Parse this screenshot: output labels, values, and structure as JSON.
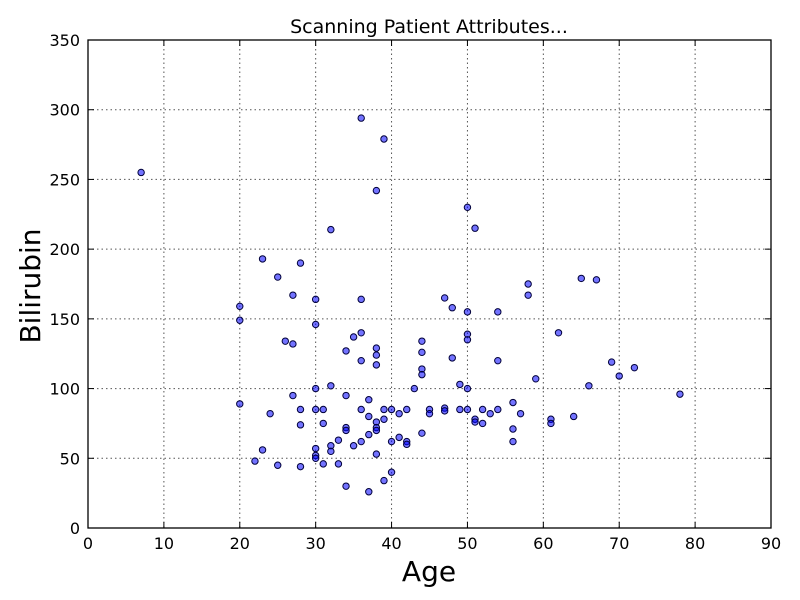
{
  "chart_data": {
    "type": "scatter",
    "title": "Scanning Patient Attributes...",
    "xlabel": "Age",
    "ylabel": "Bilirubin",
    "xlim": [
      0,
      90
    ],
    "ylim": [
      0,
      350
    ],
    "xticks": [
      0,
      10,
      20,
      30,
      40,
      50,
      60,
      70,
      80,
      90
    ],
    "yticks": [
      0,
      50,
      100,
      150,
      200,
      250,
      300,
      350
    ],
    "grid": true,
    "point_color": "#0000ff",
    "point_opacity": 0.55,
    "points": [
      [
        7,
        255
      ],
      [
        20,
        159
      ],
      [
        20,
        149
      ],
      [
        20,
        89
      ],
      [
        22,
        48
      ],
      [
        23,
        193
      ],
      [
        23,
        56
      ],
      [
        24,
        82
      ],
      [
        25,
        180
      ],
      [
        25,
        45
      ],
      [
        26,
        134
      ],
      [
        27,
        167
      ],
      [
        27,
        132
      ],
      [
        27,
        95
      ],
      [
        28,
        190
      ],
      [
        28,
        85
      ],
      [
        28,
        74
      ],
      [
        28,
        44
      ],
      [
        30,
        164
      ],
      [
        30,
        146
      ],
      [
        30,
        100
      ],
      [
        30,
        85
      ],
      [
        30,
        57
      ],
      [
        30,
        52
      ],
      [
        30,
        50
      ],
      [
        31,
        85
      ],
      [
        31,
        75
      ],
      [
        31,
        46
      ],
      [
        32,
        214
      ],
      [
        32,
        102
      ],
      [
        32,
        59
      ],
      [
        32,
        55
      ],
      [
        33,
        63
      ],
      [
        33,
        46
      ],
      [
        34,
        127
      ],
      [
        34,
        95
      ],
      [
        34,
        72
      ],
      [
        34,
        70
      ],
      [
        34,
        30
      ],
      [
        35,
        137
      ],
      [
        35,
        59
      ],
      [
        36,
        294
      ],
      [
        36,
        164
      ],
      [
        36,
        140
      ],
      [
        36,
        120
      ],
      [
        36,
        85
      ],
      [
        36,
        62
      ],
      [
        37,
        92
      ],
      [
        37,
        80
      ],
      [
        37,
        67
      ],
      [
        37,
        26
      ],
      [
        38,
        242
      ],
      [
        38,
        129
      ],
      [
        38,
        124
      ],
      [
        38,
        117
      ],
      [
        38,
        76
      ],
      [
        38,
        72
      ],
      [
        38,
        70
      ],
      [
        38,
        53
      ],
      [
        39,
        279
      ],
      [
        39,
        85
      ],
      [
        39,
        78
      ],
      [
        39,
        34
      ],
      [
        40,
        85
      ],
      [
        40,
        62
      ],
      [
        40,
        40
      ],
      [
        41,
        82
      ],
      [
        41,
        65
      ],
      [
        42,
        85
      ],
      [
        42,
        62
      ],
      [
        42,
        60
      ],
      [
        43,
        100
      ],
      [
        44,
        134
      ],
      [
        44,
        126
      ],
      [
        44,
        114
      ],
      [
        44,
        110
      ],
      [
        44,
        68
      ],
      [
        45,
        85
      ],
      [
        45,
        82
      ],
      [
        47,
        165
      ],
      [
        47,
        86
      ],
      [
        47,
        84
      ],
      [
        48,
        158
      ],
      [
        48,
        122
      ],
      [
        49,
        103
      ],
      [
        49,
        85
      ],
      [
        50,
        230
      ],
      [
        50,
        155
      ],
      [
        50,
        139
      ],
      [
        50,
        135
      ],
      [
        50,
        100
      ],
      [
        50,
        85
      ],
      [
        51,
        215
      ],
      [
        51,
        78
      ],
      [
        51,
        76
      ],
      [
        52,
        85
      ],
      [
        52,
        75
      ],
      [
        53,
        82
      ],
      [
        54,
        155
      ],
      [
        54,
        120
      ],
      [
        54,
        85
      ],
      [
        56,
        90
      ],
      [
        56,
        71
      ],
      [
        56,
        62
      ],
      [
        57,
        82
      ],
      [
        58,
        175
      ],
      [
        58,
        167
      ],
      [
        59,
        107
      ],
      [
        61,
        78
      ],
      [
        61,
        75
      ],
      [
        62,
        140
      ],
      [
        64,
        80
      ],
      [
        65,
        179
      ],
      [
        66,
        102
      ],
      [
        67,
        178
      ],
      [
        69,
        119
      ],
      [
        70,
        109
      ],
      [
        72,
        115
      ],
      [
        78,
        96
      ]
    ]
  }
}
